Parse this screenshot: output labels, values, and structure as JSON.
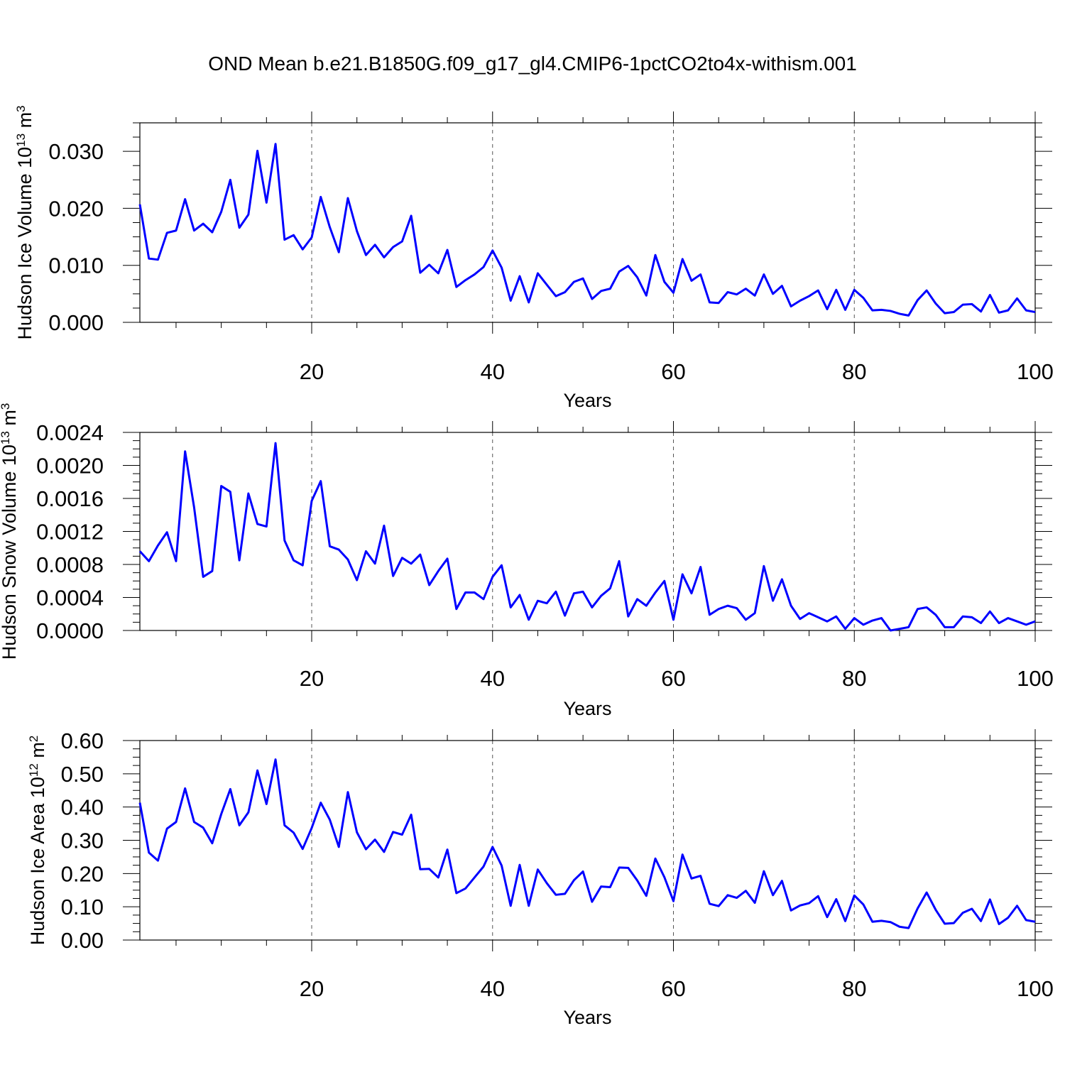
{
  "title": "OND Mean b.e21.B1850G.f09_g17_gl4.CMIP6-1pctCO2to4x-withism.001",
  "chart_data": [
    {
      "type": "line",
      "title": "",
      "ylabel": "Hudson Ice Volume 10",
      "ylabel_exp": "13",
      "ylabel_unit": " m",
      "ylabel_unit_exp": "3",
      "xlabel": "Years",
      "xlim": [
        1,
        100
      ],
      "ylim": [
        0,
        0.035
      ],
      "xticks": [
        20,
        40,
        60,
        80,
        100
      ],
      "xtick_labels": [
        "20",
        "40",
        "60",
        "80",
        "100"
      ],
      "yticks": [
        0,
        0.01,
        0.02,
        0.03
      ],
      "ytick_labels": [
        "0.000",
        "0.010",
        "0.020",
        "0.030"
      ],
      "y_minor_step": 0.0025,
      "grid": "vertical dashed at major x ticks",
      "color": "#0000ff",
      "x_start": 1,
      "values": [
        0.0207,
        0.0112,
        0.011,
        0.0157,
        0.0161,
        0.0216,
        0.0161,
        0.0173,
        0.0158,
        0.0194,
        0.025,
        0.0166,
        0.0189,
        0.0301,
        0.021,
        0.0313,
        0.0145,
        0.0153,
        0.0128,
        0.0149,
        0.022,
        0.0167,
        0.0123,
        0.0218,
        0.016,
        0.0118,
        0.0136,
        0.0114,
        0.0132,
        0.0142,
        0.0187,
        0.0087,
        0.0101,
        0.0086,
        0.0127,
        0.0062,
        0.0074,
        0.0084,
        0.0097,
        0.0126,
        0.0096,
        0.0038,
        0.0081,
        0.0035,
        0.0086,
        0.0066,
        0.0046,
        0.0053,
        0.0071,
        0.0077,
        0.0041,
        0.0055,
        0.0059,
        0.0089,
        0.0099,
        0.0079,
        0.0047,
        0.0118,
        0.0071,
        0.0052,
        0.0111,
        0.0073,
        0.0084,
        0.0035,
        0.0034,
        0.0053,
        0.0049,
        0.0059,
        0.0047,
        0.0084,
        0.005,
        0.0064,
        0.0028,
        0.0038,
        0.0046,
        0.0056,
        0.0023,
        0.0057,
        0.0022,
        0.0057,
        0.0043,
        0.0021,
        0.0022,
        0.002,
        0.0015,
        0.0012,
        0.0039,
        0.0056,
        0.0033,
        0.0016,
        0.0018,
        0.0031,
        0.0032,
        0.0019,
        0.0048,
        0.0017,
        0.0021,
        0.0042,
        0.0021,
        0.0018
      ]
    },
    {
      "type": "line",
      "title": "",
      "ylabel": "Hudson Snow Volume 10",
      "ylabel_exp": "13",
      "ylabel_unit": " m",
      "ylabel_unit_exp": "3",
      "xlabel": "Years",
      "xlim": [
        1,
        100
      ],
      "ylim": [
        0,
        0.0024
      ],
      "xticks": [
        20,
        40,
        60,
        80,
        100
      ],
      "xtick_labels": [
        "20",
        "40",
        "60",
        "80",
        "100"
      ],
      "yticks": [
        0,
        0.0004,
        0.0008,
        0.0012,
        0.0016,
        0.002,
        0.0024
      ],
      "ytick_labels": [
        "0.0000",
        "0.0004",
        "0.0008",
        "0.0012",
        "0.0016",
        "0.0020",
        "0.0024"
      ],
      "y_minor_step": 0.0001,
      "grid": "vertical dashed at major x ticks",
      "color": "#0000ff",
      "x_start": 1,
      "values": [
        0.00096,
        0.00084,
        0.00103,
        0.00119,
        0.00084,
        0.00217,
        0.00149,
        0.00065,
        0.00072,
        0.00175,
        0.00168,
        0.00085,
        0.00166,
        0.00129,
        0.00126,
        0.00227,
        0.00109,
        0.00085,
        0.00079,
        0.00157,
        0.00181,
        0.00102,
        0.00098,
        0.00086,
        0.00061,
        0.00096,
        0.00081,
        0.00127,
        0.00066,
        0.00088,
        0.00081,
        0.00092,
        0.00055,
        0.00072,
        0.00087,
        0.00026,
        0.00046,
        0.00046,
        0.00038,
        0.00065,
        0.00079,
        0.00028,
        0.00043,
        0.00013,
        0.00036,
        0.00033,
        0.00047,
        0.00018,
        0.00045,
        0.00047,
        0.00028,
        0.00042,
        0.00051,
        0.00084,
        0.00017,
        0.00038,
        0.0003,
        0.00046,
        0.0006,
        0.00013,
        0.00068,
        0.00045,
        0.00077,
        0.00019,
        0.00026,
        0.0003,
        0.00027,
        0.00013,
        0.00021,
        0.00078,
        0.00036,
        0.00062,
        0.0003,
        0.00014,
        0.00021,
        0.00016,
        0.00011,
        0.00017,
        2e-05,
        0.00015,
        7e-05,
        0.00012,
        0.00015,
        0.0,
        2e-05,
        4e-05,
        0.00026,
        0.00028,
        0.00019,
        4e-05,
        4e-05,
        0.00017,
        0.00016,
        9e-05,
        0.00023,
        9e-05,
        0.00015,
        0.00011,
        7e-05,
        0.00011
      ]
    },
    {
      "type": "line",
      "title": "",
      "ylabel": "Hudson Ice Area 10",
      "ylabel_exp": "12",
      "ylabel_unit": " m",
      "ylabel_unit_exp": "2",
      "xlabel": "Years",
      "xlim": [
        1,
        100
      ],
      "ylim": [
        0,
        0.6
      ],
      "xticks": [
        20,
        40,
        60,
        80,
        100
      ],
      "xtick_labels": [
        "20",
        "40",
        "60",
        "80",
        "100"
      ],
      "yticks": [
        0,
        0.1,
        0.2,
        0.3,
        0.4,
        0.5,
        0.6
      ],
      "ytick_labels": [
        "0.00",
        "0.10",
        "0.20",
        "0.30",
        "0.40",
        "0.50",
        "0.60"
      ],
      "y_minor_step": 0.025,
      "grid": "vertical dashed at major x ticks",
      "color": "#0000ff",
      "x_start": 1,
      "values": [
        0.413,
        0.263,
        0.239,
        0.335,
        0.355,
        0.456,
        0.355,
        0.338,
        0.291,
        0.379,
        0.454,
        0.345,
        0.384,
        0.51,
        0.409,
        0.543,
        0.345,
        0.323,
        0.274,
        0.337,
        0.413,
        0.362,
        0.28,
        0.445,
        0.324,
        0.273,
        0.302,
        0.265,
        0.325,
        0.317,
        0.377,
        0.213,
        0.214,
        0.188,
        0.272,
        0.141,
        0.155,
        0.188,
        0.221,
        0.28,
        0.224,
        0.103,
        0.226,
        0.103,
        0.212,
        0.171,
        0.136,
        0.139,
        0.18,
        0.206,
        0.115,
        0.161,
        0.159,
        0.218,
        0.217,
        0.179,
        0.133,
        0.245,
        0.189,
        0.117,
        0.257,
        0.185,
        0.193,
        0.109,
        0.102,
        0.135,
        0.127,
        0.148,
        0.112,
        0.207,
        0.135,
        0.178,
        0.089,
        0.104,
        0.111,
        0.132,
        0.069,
        0.123,
        0.057,
        0.134,
        0.107,
        0.055,
        0.058,
        0.054,
        0.04,
        0.036,
        0.095,
        0.143,
        0.091,
        0.049,
        0.051,
        0.082,
        0.094,
        0.057,
        0.122,
        0.048,
        0.067,
        0.103,
        0.06,
        0.055
      ]
    }
  ]
}
